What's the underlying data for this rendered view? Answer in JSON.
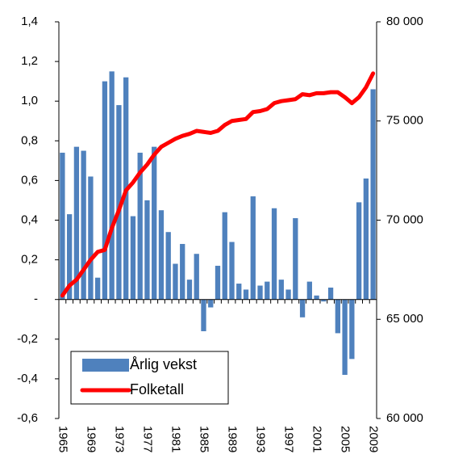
{
  "chart_data": {
    "type": "bar",
    "categories": [
      "1965",
      null,
      null,
      null,
      "1969",
      null,
      null,
      null,
      "1973",
      null,
      null,
      null,
      "1977",
      null,
      null,
      null,
      "1981",
      null,
      null,
      null,
      "1985",
      null,
      null,
      null,
      "1989",
      null,
      null,
      null,
      "1993",
      null,
      null,
      null,
      "1997",
      null,
      null,
      null,
      "2001",
      null,
      null,
      null,
      "2005",
      null,
      null,
      null,
      "2009"
    ],
    "series": [
      {
        "name": "Årlig vekst",
        "type": "bar",
        "color": "#4f81bd",
        "values": [
          0.74,
          0.43,
          0.77,
          0.75,
          0.62,
          0.11,
          1.1,
          1.15,
          0.98,
          1.12,
          0.42,
          0.74,
          0.5,
          0.77,
          0.45,
          0.34,
          0.18,
          0.28,
          0.1,
          0.23,
          -0.16,
          -0.04,
          0.17,
          0.44,
          0.29,
          0.08,
          0.05,
          0.52,
          0.07,
          0.09,
          0.46,
          0.1,
          0.05,
          0.41,
          -0.09,
          0.09,
          0.02,
          -0.01,
          0.06,
          -0.17,
          -0.38,
          -0.3,
          0.49,
          0.61,
          1.06
        ]
      },
      {
        "name": "Folketall",
        "type": "line",
        "axis": "y2",
        "color": "#ff0000",
        "values": [
          66200,
          66700,
          67000,
          67500,
          68000,
          68400,
          68500,
          69600,
          70500,
          71500,
          71900,
          72400,
          72800,
          73300,
          73700,
          73900,
          74100,
          74250,
          74350,
          74500,
          74450,
          74400,
          74500,
          74800,
          75000,
          75050,
          75100,
          75450,
          75500,
          75600,
          75900,
          76000,
          76050,
          76100,
          76350,
          76300,
          76400,
          76400,
          76450,
          76450,
          76200,
          75900,
          76200,
          76700,
          77400
        ]
      }
    ],
    "ylim": [
      -0.6,
      1.4
    ],
    "yticks": [
      {
        "value": -0.6,
        "label": "-0,6"
      },
      {
        "value": -0.4,
        "label": "-0,4"
      },
      {
        "value": -0.2,
        "label": "-0,2"
      },
      {
        "value": 0,
        "label": "-"
      },
      {
        "value": 0.2,
        "label": "0,2"
      },
      {
        "value": 0.4,
        "label": "0,4"
      },
      {
        "value": 0.6,
        "label": "0,6"
      },
      {
        "value": 0.8,
        "label": "0,8"
      },
      {
        "value": 1.0,
        "label": "1,0"
      },
      {
        "value": 1.2,
        "label": "1,2"
      },
      {
        "value": 1.4,
        "label": "1,4"
      }
    ],
    "y2lim": [
      60000,
      80000
    ],
    "y2ticks": [
      {
        "value": 60000,
        "label": "60 000"
      },
      {
        "value": 65000,
        "label": "65 000"
      },
      {
        "value": 70000,
        "label": "70 000"
      },
      {
        "value": 75000,
        "label": "75 000"
      },
      {
        "value": 80000,
        "label": "80 000"
      }
    ],
    "legend": "lower left"
  }
}
